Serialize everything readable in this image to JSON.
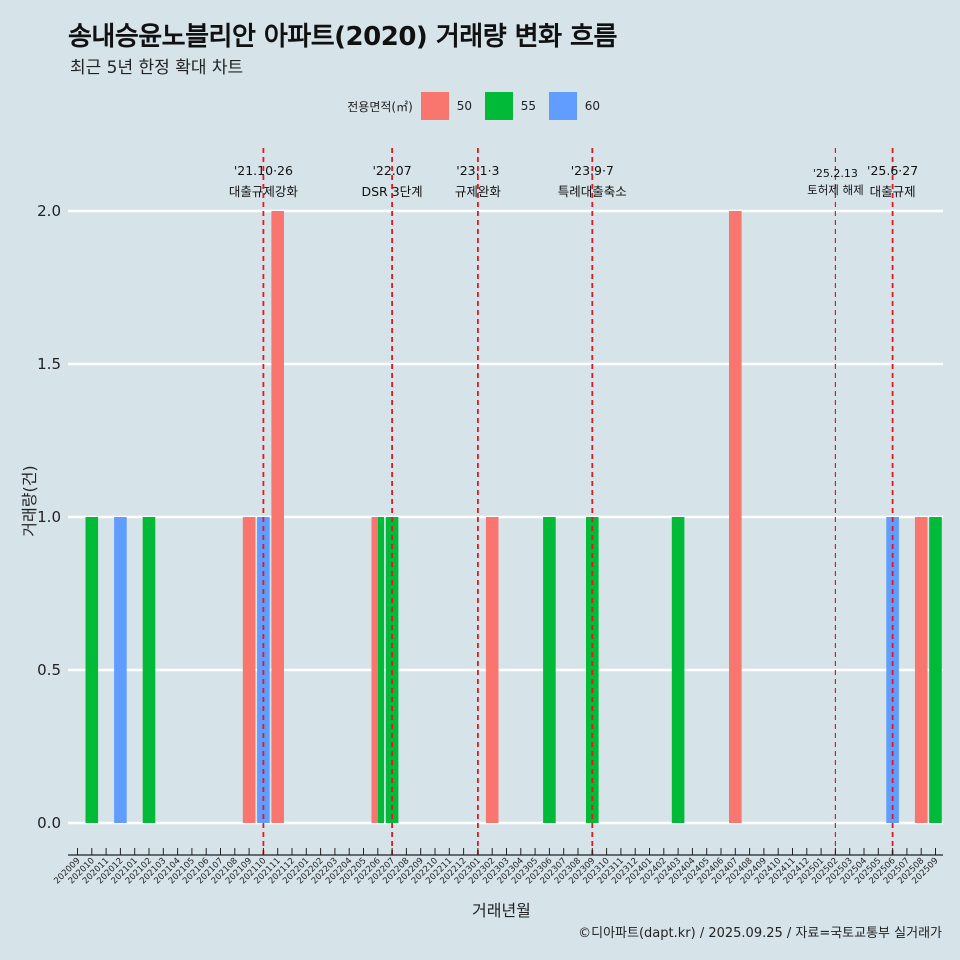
{
  "chart_data": {
    "type": "bar",
    "title": "송내승윤노블리안 아파트(2020) 거래량 변화 흐름",
    "subtitle": "최근 5년 한정 확대 차트",
    "xlabel": "거래년월",
    "ylabel": "거래량(건)",
    "caption": "©디아파트(dapt.kr) / 2025.09.25 / 자료=국토교통부 실거래가",
    "ylim": [
      0,
      2.1
    ],
    "yticks": [
      "0.0",
      "0.5",
      "1.0",
      "1.5",
      "2.0"
    ],
    "legend": {
      "title": "전용면적(㎡)",
      "position": "top",
      "items": [
        {
          "label": "50",
          "color": "#f8766d"
        },
        {
          "label": "55",
          "color": "#00ba38"
        },
        {
          "label": "60",
          "color": "#619cff"
        }
      ]
    },
    "categories": [
      "202009",
      "202010",
      "202011",
      "202012",
      "202101",
      "202102",
      "202103",
      "202104",
      "202105",
      "202106",
      "202107",
      "202108",
      "202109",
      "202110",
      "202111",
      "202112",
      "202201",
      "202202",
      "202203",
      "202204",
      "202205",
      "202206",
      "202207",
      "202208",
      "202209",
      "202210",
      "202211",
      "202212",
      "202301",
      "202302",
      "202303",
      "202304",
      "202305",
      "202306",
      "202307",
      "202308",
      "202309",
      "202310",
      "202311",
      "202312",
      "202401",
      "202402",
      "202403",
      "202404",
      "202405",
      "202406",
      "202407",
      "202408",
      "202409",
      "202410",
      "202411",
      "202412",
      "202501",
      "202502",
      "202503",
      "202504",
      "202505",
      "202506",
      "202507",
      "202508",
      "202509"
    ],
    "bars": [
      {
        "month": "202010",
        "series": "55",
        "value": 1
      },
      {
        "month": "202012",
        "series": "60",
        "value": 1
      },
      {
        "month": "202102",
        "series": "55",
        "value": 1
      },
      {
        "month": "202109",
        "series": "50",
        "value": 1
      },
      {
        "month": "202110",
        "series": "60",
        "value": 1
      },
      {
        "month": "202111",
        "series": "50",
        "value": 2
      },
      {
        "month": "202206",
        "series": "50",
        "value": 1
      },
      {
        "month": "202206",
        "series": "55",
        "value": 1
      },
      {
        "month": "202207",
        "series": "55",
        "value": 1
      },
      {
        "month": "202302",
        "series": "50",
        "value": 1
      },
      {
        "month": "202306",
        "series": "55",
        "value": 1
      },
      {
        "month": "202309",
        "series": "55",
        "value": 1
      },
      {
        "month": "202403",
        "series": "55",
        "value": 1
      },
      {
        "month": "202407",
        "series": "50",
        "value": 2
      },
      {
        "month": "202506",
        "series": "60",
        "value": 1
      },
      {
        "month": "202508",
        "series": "50",
        "value": 1
      },
      {
        "month": "202509",
        "series": "55",
        "value": 1
      }
    ],
    "annotations": [
      {
        "month": "202110",
        "date": "'21.10·26",
        "label": "대출규제강화",
        "size": "normal"
      },
      {
        "month": "202207",
        "date": "'22.07",
        "label": "DSR 3단계",
        "size": "normal"
      },
      {
        "month": "202301",
        "date": "'23.1·3",
        "label": "규제완화",
        "size": "normal"
      },
      {
        "month": "202309",
        "date": "'23.9·7",
        "label": "특례대출축소",
        "size": "normal"
      },
      {
        "month": "202502",
        "date": "'25.2.13",
        "label": "토허제 해제",
        "size": "small"
      },
      {
        "month": "202506",
        "date": "'25.6·27",
        "label": "대출규제",
        "size": "normal"
      }
    ]
  }
}
